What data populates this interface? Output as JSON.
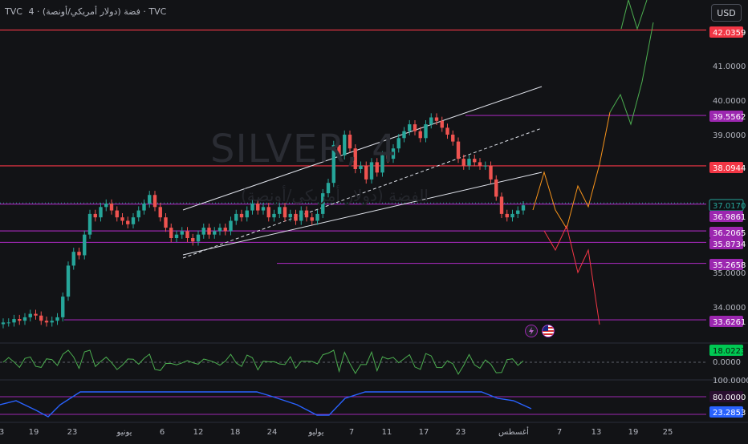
{
  "header": {
    "symbol": "TVC",
    "timeframe": "4",
    "title_arabic": "فضة (دولار أمريكي/أونصة) · 4 · TVC",
    "watermark_symbol": "SILVER, 4",
    "watermark_name": "الفضة (دولار أمريكي/أونصة)"
  },
  "currency_button": "USD",
  "colors": {
    "background": "#121316",
    "up_candle": "#26a69a",
    "down_candle": "#ef5350",
    "red_level": "#f23645",
    "purple_level": "#9c27b0",
    "blue_level": "#2962ff",
    "channel": "#e0e3eb",
    "projection_orange": "#f7931a",
    "projection_green": "#4caf50",
    "projection_red": "#f23645",
    "osc_green": "#4caf50",
    "osc_red": "#f23645",
    "osc2_blue": "#2962ff"
  },
  "chart_data": {
    "type": "candlestick",
    "price_axis": {
      "ticks": [
        "41.0000",
        "40.0000",
        "39.0000",
        "35.0000",
        "34.0000"
      ],
      "range": [
        33.0,
        42.7
      ]
    },
    "levels": [
      {
        "label": "42.0359",
        "value": 42.0359,
        "style": "red"
      },
      {
        "label": "39.5562",
        "value": 39.5562,
        "style": "purple"
      },
      {
        "label": "38.0944",
        "value": 38.0944,
        "style": "red"
      },
      {
        "label": "37.0170",
        "value": 37.017,
        "style": "blue"
      },
      {
        "label": "36.9861",
        "value": 36.9861,
        "style": "purple"
      },
      {
        "label": "36.2065",
        "value": 36.2065,
        "style": "purple"
      },
      {
        "label": "35.8734",
        "value": 35.8734,
        "style": "purple"
      },
      {
        "label": "35.2658",
        "value": 35.2658,
        "style": "purple"
      },
      {
        "label": "33.6261",
        "value": 33.6261,
        "style": "purple"
      }
    ],
    "x_axis": {
      "labels": [
        "3",
        "19",
        "23",
        "يونيو",
        "6",
        "12",
        "18",
        "24",
        "يوليو",
        "7",
        "11",
        "17",
        "23",
        "أغسطس",
        "7",
        "13",
        "19",
        "25"
      ]
    },
    "price_series": [
      33.55,
      33.55,
      33.65,
      33.6,
      33.7,
      33.8,
      33.75,
      33.6,
      33.55,
      33.6,
      33.7,
      34.3,
      35.2,
      35.6,
      35.5,
      36.1,
      36.7,
      36.6,
      36.9,
      37.0,
      36.8,
      36.6,
      36.5,
      36.4,
      36.6,
      36.8,
      37.0,
      37.25,
      36.9,
      36.6,
      36.3,
      36.0,
      36.1,
      36.2,
      36.0,
      35.9,
      36.1,
      36.3,
      36.1,
      36.2,
      36.3,
      36.2,
      36.5,
      36.7,
      36.6,
      36.8,
      37.0,
      36.8,
      36.9,
      36.6,
      36.7,
      36.9,
      36.6,
      36.7,
      36.5,
      36.8,
      36.6,
      36.5,
      36.7,
      37.3,
      37.6,
      38.7,
      38.4,
      39.0,
      38.6,
      38.0,
      38.1,
      37.7,
      38.2,
      37.9,
      38.4,
      38.3,
      38.6,
      38.9,
      39.1,
      39.3,
      39.1,
      38.9,
      39.3,
      39.5,
      39.4,
      39.2,
      39.0,
      38.8,
      38.3,
      38.1,
      38.3,
      38.2,
      38.1,
      38.1,
      37.7,
      37.2,
      36.7,
      36.6,
      36.7,
      36.8,
      36.95
    ],
    "oscillator_1": {
      "labels": [
        "18.0223",
        "0.0000"
      ],
      "current": 18.0223
    },
    "oscillator_2": {
      "labels": [
        "80.0000",
        "23.2853"
      ],
      "partial_tick": "100.0000",
      "current": 23.2853,
      "upper": 80
    }
  }
}
